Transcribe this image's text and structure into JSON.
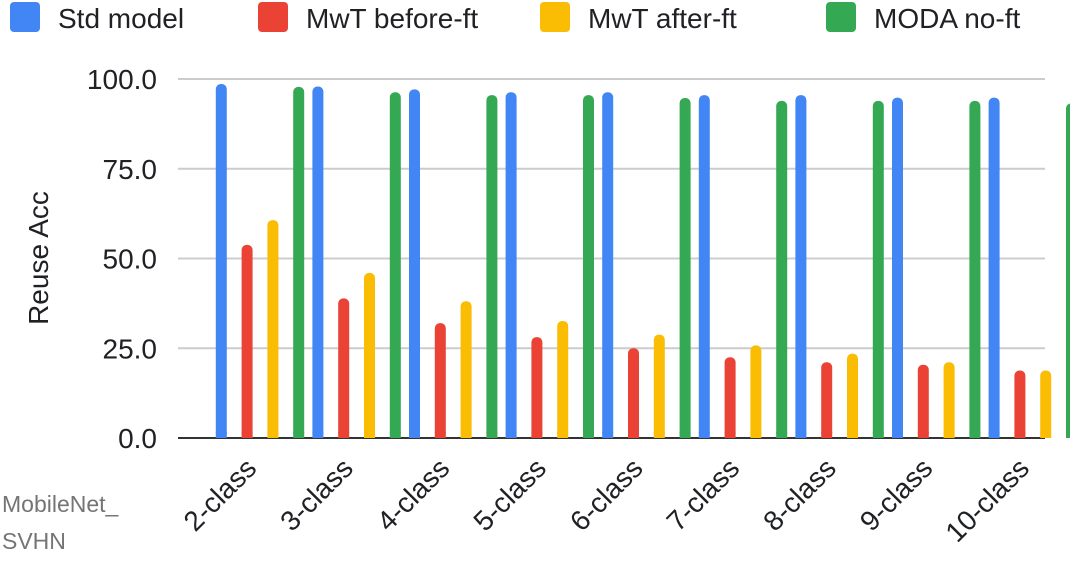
{
  "chart_data": {
    "type": "bar",
    "title": "",
    "xlabel": "",
    "ylabel": "Reuse Acc",
    "ylim": [
      0,
      100
    ],
    "yticks": [
      "0.0",
      "25.0",
      "50.0",
      "75.0",
      "100.0"
    ],
    "ytick_values": [
      0,
      25,
      50,
      75,
      100
    ],
    "grid": true,
    "legend_position": "top",
    "corner_note": [
      "MobileNet_",
      "SVHN"
    ],
    "categories": [
      "2-class",
      "3-class",
      "4-class",
      "5-class",
      "6-class",
      "7-class",
      "8-class",
      "9-class",
      "10-class"
    ],
    "series": [
      {
        "name": "Std model",
        "color": "#4285F4",
        "values": [
          98.6,
          97.9,
          97.1,
          96.3,
          96.3,
          95.5,
          95.5,
          94.8,
          94.8
        ]
      },
      {
        "name": "MwT before-ft",
        "color": "#EA4335",
        "values": [
          53.8,
          38.9,
          32.0,
          28.1,
          25.0,
          22.5,
          21.1,
          20.4,
          18.8
        ]
      },
      {
        "name": "MwT after-ft",
        "color": "#FBBC04",
        "values": [
          60.7,
          46.0,
          38.1,
          32.6,
          28.8,
          25.8,
          23.5,
          21.1,
          18.8
        ]
      },
      {
        "name": "MODA no-ft",
        "color": "#34A853",
        "values": [
          97.8,
          96.3,
          95.5,
          95.5,
          94.7,
          93.9,
          93.9,
          93.9,
          93.2
        ]
      }
    ]
  }
}
